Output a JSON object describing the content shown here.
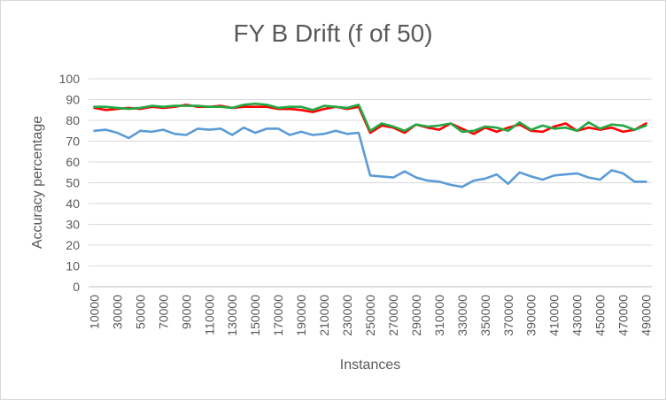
{
  "chart_data": {
    "type": "line",
    "title": "FY B Drift (f of 50)",
    "xlabel": "Instances",
    "ylabel": "Accuracy percentage",
    "ylim": [
      0,
      100
    ],
    "yticks": [
      0,
      10,
      20,
      30,
      40,
      50,
      60,
      70,
      80,
      90,
      100
    ],
    "grid": "horizontal",
    "legend": "none",
    "x": [
      10000,
      20000,
      30000,
      40000,
      50000,
      60000,
      70000,
      80000,
      90000,
      100000,
      110000,
      120000,
      130000,
      140000,
      150000,
      160000,
      170000,
      180000,
      190000,
      200000,
      210000,
      220000,
      230000,
      240000,
      250000,
      260000,
      270000,
      280000,
      290000,
      300000,
      310000,
      320000,
      330000,
      340000,
      350000,
      360000,
      370000,
      380000,
      390000,
      400000,
      410000,
      420000,
      430000,
      440000,
      450000,
      460000,
      470000,
      480000,
      490000
    ],
    "xticks": [
      10000,
      30000,
      50000,
      70000,
      90000,
      110000,
      130000,
      150000,
      170000,
      190000,
      210000,
      230000,
      250000,
      270000,
      290000,
      310000,
      330000,
      350000,
      370000,
      390000,
      410000,
      430000,
      450000,
      470000,
      490000
    ],
    "series": [
      {
        "color": "#5b9bd5",
        "values": [
          75,
          75.5,
          74,
          71.5,
          75,
          74.5,
          75.5,
          73.5,
          73,
          76,
          75.5,
          76,
          73,
          76.5,
          74,
          76,
          76,
          73,
          74.5,
          73,
          73.5,
          75,
          73.5,
          74,
          53.5,
          53,
          52.5,
          55.5,
          52.5,
          51,
          50.5,
          49,
          48,
          51,
          52,
          54,
          49.5,
          55,
          53,
          51.5,
          53.5,
          54,
          54.5,
          52.5,
          51.5,
          56,
          54.5,
          50.5,
          50.5
        ]
      },
      {
        "color": "#ff0000",
        "values": [
          86,
          85,
          85.5,
          86,
          85.5,
          86.5,
          86,
          86.5,
          87.5,
          86.5,
          86.5,
          87,
          86,
          86.5,
          86.5,
          86.5,
          85.5,
          85.5,
          85,
          84,
          85.5,
          86.5,
          85.5,
          86.5,
          74,
          77.5,
          76.5,
          74,
          78,
          76.5,
          75.5,
          78.5,
          76,
          73.5,
          76.5,
          74.5,
          76.5,
          78,
          75,
          74.5,
          77,
          78.5,
          75,
          76.5,
          75.5,
          76.5,
          74.5,
          75.5,
          78.5
        ]
      },
      {
        "color": "#22a845",
        "values": [
          86.5,
          86.5,
          86,
          85.5,
          86,
          87,
          86.5,
          87,
          87,
          87,
          86.5,
          86.5,
          86,
          87.5,
          88,
          87.5,
          86,
          86.5,
          86.5,
          85,
          87,
          86.5,
          86,
          87.5,
          75,
          78.5,
          77,
          75,
          78,
          77,
          77.5,
          78.5,
          74.5,
          75,
          77,
          76.5,
          75,
          79,
          75.5,
          77.5,
          76,
          76.5,
          75,
          79,
          76,
          78,
          77.5,
          75.5,
          77.5
        ]
      }
    ]
  }
}
